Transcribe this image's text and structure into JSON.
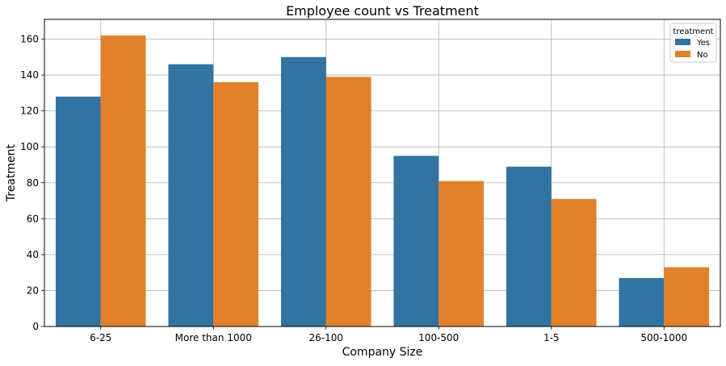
{
  "chart_data": {
    "type": "bar",
    "title": "Employee count vs Treatment",
    "xlabel": "Company Size",
    "ylabel": "Treatment",
    "categories": [
      "6-25",
      "More than 1000",
      "26-100",
      "100-500",
      "1-5",
      "500-1000"
    ],
    "series": [
      {
        "name": "Yes",
        "values": [
          128,
          146,
          150,
          95,
          89,
          27
        ],
        "color": "#3274a1"
      },
      {
        "name": "No",
        "values": [
          162,
          136,
          139,
          81,
          71,
          33
        ],
        "color": "#e1812c"
      }
    ],
    "ylim": [
      0,
      171
    ],
    "yticks": [
      0,
      20,
      40,
      60,
      80,
      100,
      120,
      140,
      160
    ],
    "grid": true,
    "legend": {
      "title": "treatment",
      "position": "top-right"
    }
  }
}
